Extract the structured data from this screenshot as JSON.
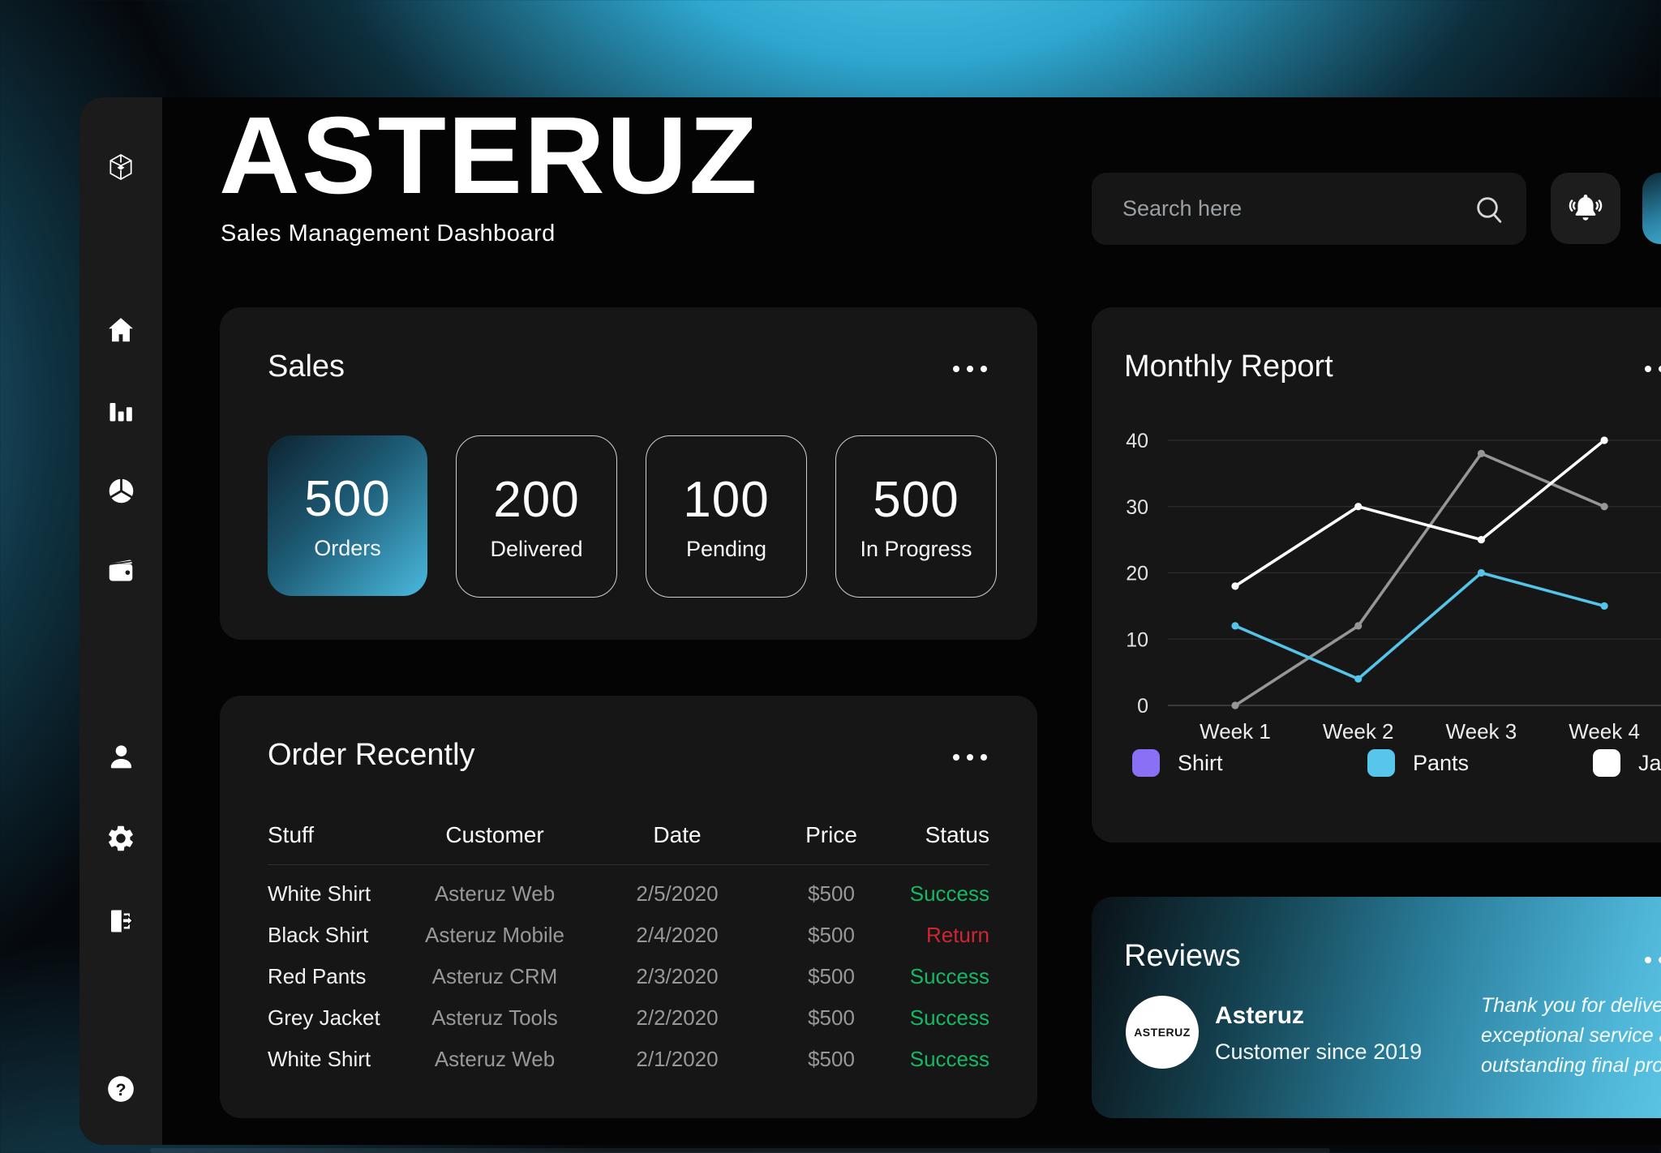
{
  "brand": {
    "name": "ASTERUZ",
    "subtitle": "Sales Management Dashboard"
  },
  "topbar": {
    "search_placeholder": "Search here"
  },
  "sidebar": {
    "icons": [
      "brand-logo",
      "home",
      "bar-chart",
      "pie-chart",
      "wallet",
      "user",
      "settings",
      "logout",
      "help"
    ]
  },
  "sales_card": {
    "title": "Sales",
    "stats": [
      {
        "value": "500",
        "label": "Orders",
        "highlighted": true
      },
      {
        "value": "200",
        "label": "Delivered",
        "highlighted": false
      },
      {
        "value": "100",
        "label": "Pending",
        "highlighted": false
      },
      {
        "value": "500",
        "label": "In Progress",
        "highlighted": false
      }
    ]
  },
  "orders_card": {
    "title": "Order Recently",
    "columns": [
      "Stuff",
      "Customer",
      "Date",
      "Price",
      "Status"
    ],
    "rows": [
      {
        "stuff": "White Shirt",
        "customer": "Asteruz Web",
        "date": "2/5/2020",
        "price": "$500",
        "status": "Success"
      },
      {
        "stuff": "Black Shirt",
        "customer": "Asteruz Mobile",
        "date": "2/4/2020",
        "price": "$500",
        "status": "Return"
      },
      {
        "stuff": "Red Pants",
        "customer": "Asteruz CRM",
        "date": "2/3/2020",
        "price": "$500",
        "status": "Success"
      },
      {
        "stuff": "Grey Jacket",
        "customer": "Asteruz Tools",
        "date": "2/2/2020",
        "price": "$500",
        "status": "Success"
      },
      {
        "stuff": "White Shirt",
        "customer": "Asteruz Web",
        "date": "2/1/2020",
        "price": "$500",
        "status": "Success"
      }
    ]
  },
  "chart_data": {
    "type": "line",
    "title": "Monthly Report",
    "categories": [
      "Week 1",
      "Week 2",
      "Week 3",
      "Week 4"
    ],
    "series": [
      {
        "name": "Shirt",
        "legend_color": "#8a70f5",
        "line_color": "#969696",
        "values": [
          0,
          12,
          38,
          30
        ]
      },
      {
        "name": "Pants",
        "legend_color": "#58c6ea",
        "line_color": "#55c4e9",
        "values": [
          12,
          4,
          20,
          15
        ]
      },
      {
        "name": "Jacket",
        "legend_color": "#ffffff",
        "line_color": "#ffffff",
        "values": [
          18,
          30,
          25,
          40
        ]
      }
    ],
    "y_ticks": [
      0,
      10,
      20,
      30,
      40
    ],
    "ylim": [
      0,
      40
    ],
    "grid": true,
    "legend_position": "bottom"
  },
  "reviews_card": {
    "title": "Reviews",
    "avatar_text": "ASTERUZ",
    "customer_name": "Asteruz",
    "customer_since": "Customer since 2019",
    "quote_lines": [
      "Thank you for delivering",
      "exceptional service and an",
      "outstanding final product!"
    ]
  },
  "status_colors": {
    "Success": "#15b863",
    "Return": "#cf2633"
  },
  "colors": {
    "accent_cyan": "#49b9dd",
    "card_bg": "#161616",
    "sidebar_bg": "#1b1b1b",
    "success": "#15b863",
    "return": "#cf2633"
  }
}
